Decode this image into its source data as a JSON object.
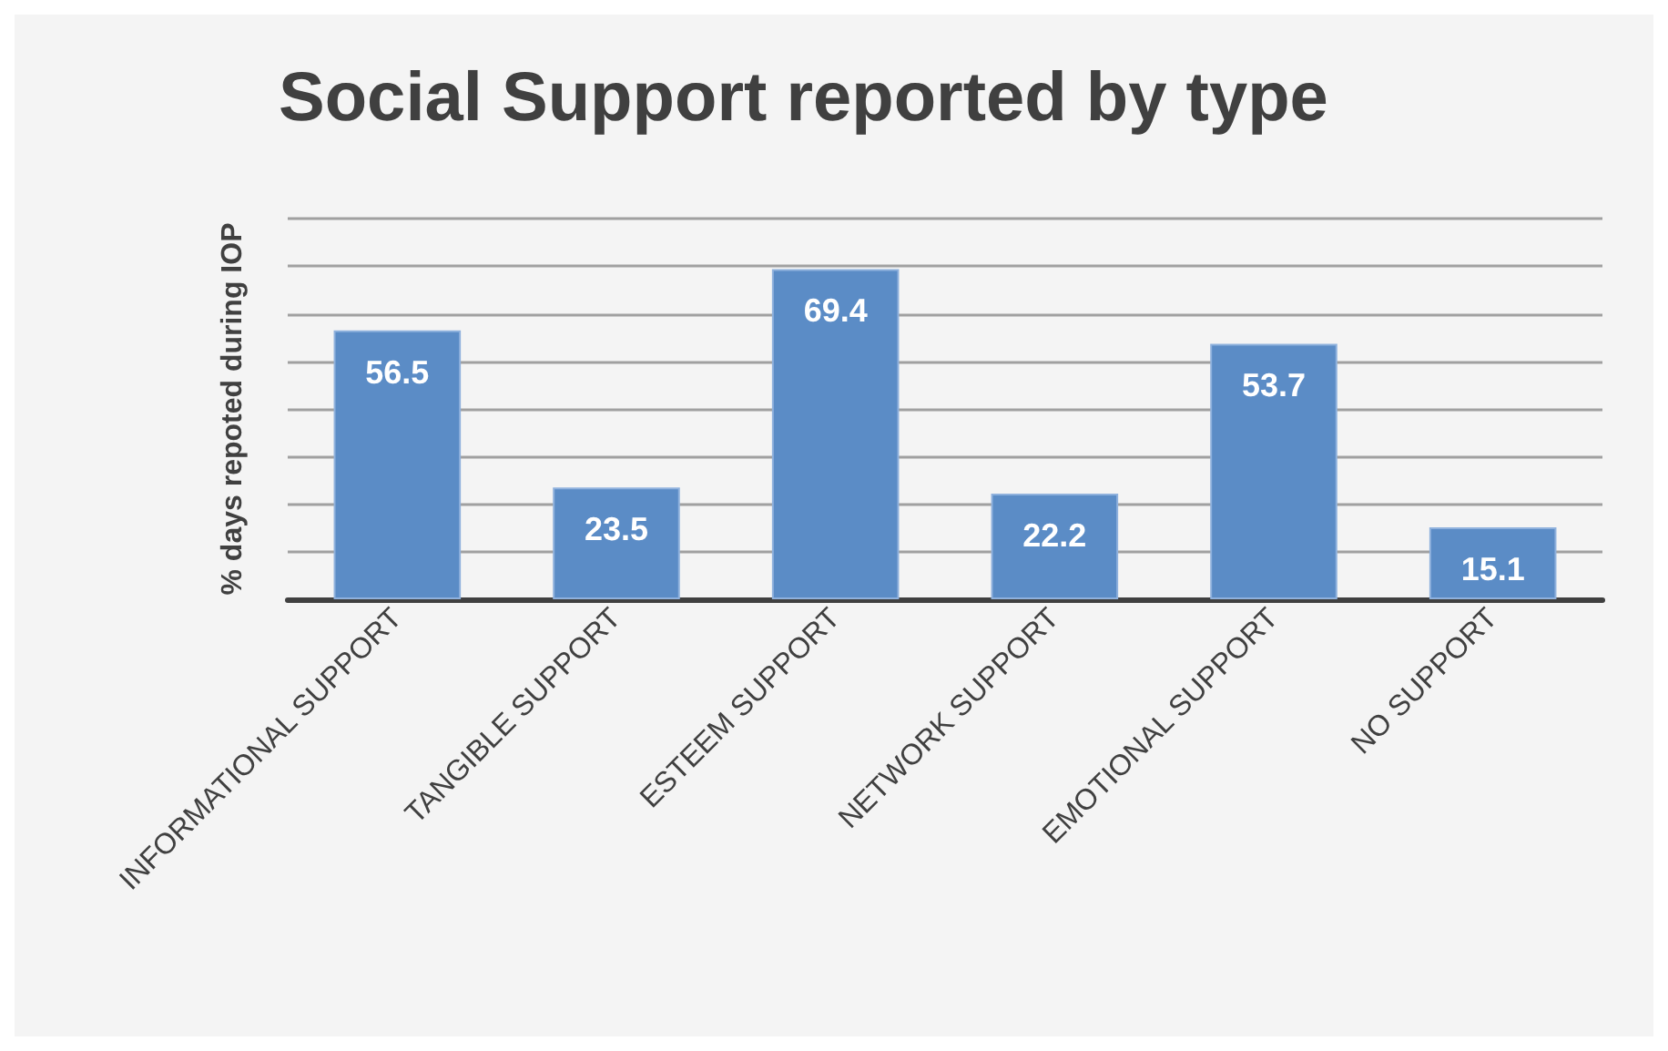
{
  "chart_data": {
    "type": "bar",
    "title": "Social Support reported by type",
    "ylabel": "% days repoted during IOP",
    "categories": [
      "INFORMATIONAL SUPPORT",
      "TANGIBLE SUPPORT",
      "ESTEEM SUPPORT",
      "NETWORK SUPPORT",
      "EMOTIONAL SUPPORT",
      "NO SUPPORT"
    ],
    "values": [
      56.5,
      23.5,
      69.4,
      22.2,
      53.7,
      15.1
    ],
    "color": "#5b8cc6",
    "ylim": [
      0,
      80
    ],
    "yticks": [
      {
        "value": 0,
        "label": null
      },
      {
        "value": 10,
        "label": null
      },
      {
        "value": 20,
        "label": null
      },
      {
        "value": 30,
        "label": null
      },
      {
        "value": 40,
        "label": null
      },
      {
        "value": 50,
        "label": null
      },
      {
        "value": 60,
        "label": null
      },
      {
        "value": 70,
        "label": null
      },
      {
        "value": 80,
        "label": null
      }
    ],
    "grid": true,
    "tick_labels": "x",
    "data_labels": true
  }
}
